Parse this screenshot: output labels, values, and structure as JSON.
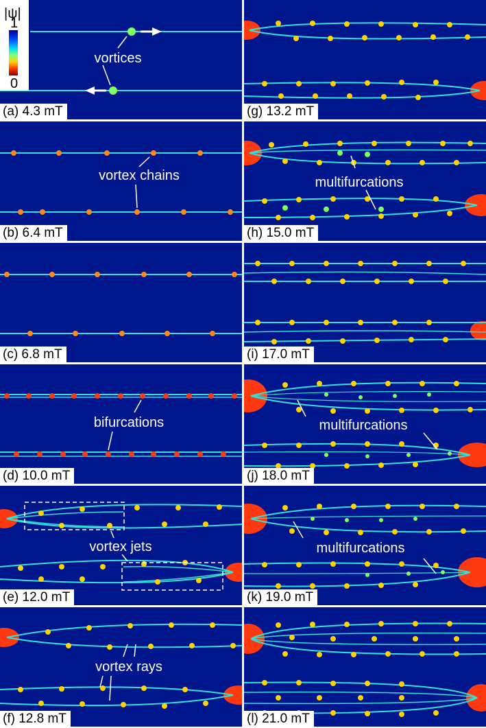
{
  "colorbar": {
    "label": "|ψ|",
    "max_label": "1",
    "min_label": "0"
  },
  "palette": {
    "background": "#00168c",
    "chain": "#35e0d8",
    "core": "#ff2a10",
    "vortex": "#ffd400",
    "edge": "#ff7a1a"
  },
  "panels": [
    {
      "id": "a",
      "label": "(a) 4.3 mT",
      "annotations": [
        "vortices"
      ]
    },
    {
      "id": "b",
      "label": "(b) 6.4 mT",
      "annotations": [
        "vortex chains"
      ]
    },
    {
      "id": "c",
      "label": "(c) 6.8 mT",
      "annotations": []
    },
    {
      "id": "d",
      "label": "(d) 10.0 mT",
      "annotations": [
        "bifurcations"
      ]
    },
    {
      "id": "e",
      "label": "(e) 12.0 mT",
      "annotations": [
        "vortex jets"
      ]
    },
    {
      "id": "f",
      "label": "(f) 12.8 mT",
      "annotations": [
        "vortex rays"
      ]
    },
    {
      "id": "g",
      "label": "(g) 13.2 mT",
      "annotations": []
    },
    {
      "id": "h",
      "label": "(h) 15.0 mT",
      "annotations": [
        "multifurcations"
      ]
    },
    {
      "id": "i",
      "label": "(i) 17.0 mT",
      "annotations": []
    },
    {
      "id": "j",
      "label": "(j) 18.0 mT",
      "annotations": [
        "multifurcations"
      ]
    },
    {
      "id": "k",
      "label": "(k) 19.0 mT",
      "annotations": [
        "multifurcations"
      ]
    },
    {
      "id": "l",
      "label": "(l) 21.0 mT",
      "annotations": []
    }
  ]
}
